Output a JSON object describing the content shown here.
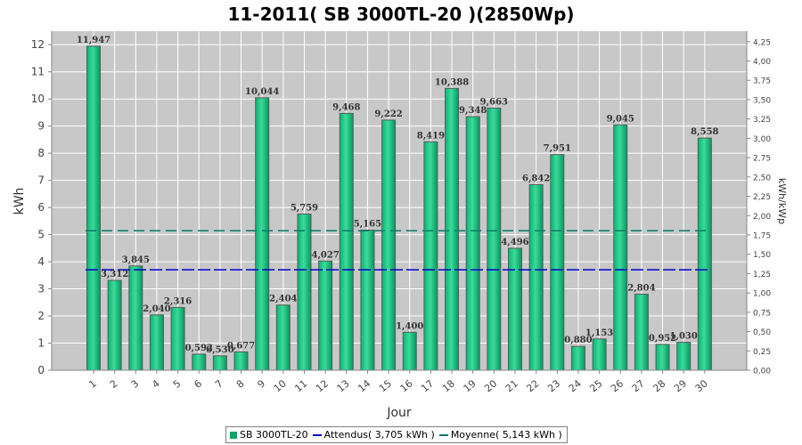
{
  "chart_data": {
    "type": "bar",
    "title": "11-2011( SB 3000TL-20 )(2850Wp)",
    "xlabel": "Jour",
    "ylabel": "kWh",
    "y2label": "kWh/kWp",
    "ylim": [
      0,
      12.5
    ],
    "y2lim": [
      0,
      4.386
    ],
    "yticks": [
      "0",
      "1",
      "2",
      "3",
      "4",
      "5",
      "6",
      "7",
      "8",
      "9",
      "10",
      "11",
      "12"
    ],
    "y2ticks": [
      "0,00",
      "0,25",
      "0,50",
      "0,75",
      "1,00",
      "1,25",
      "1,50",
      "1,75",
      "2,00",
      "2,25",
      "2,50",
      "2,75",
      "3,00",
      "3,25",
      "3,50",
      "3,75",
      "4,00",
      "4,25"
    ],
    "grid": true,
    "legend_position": "bottom",
    "categories": [
      "1",
      "2",
      "3",
      "4",
      "5",
      "6",
      "7",
      "8",
      "9",
      "10",
      "11",
      "12",
      "13",
      "14",
      "15",
      "16",
      "17",
      "18",
      "19",
      "20",
      "21",
      "22",
      "23",
      "24",
      "25",
      "26",
      "27",
      "28",
      "29",
      "30"
    ],
    "series": [
      {
        "name": "SB 3000TL-20",
        "values": [
          11.947,
          3.312,
          3.845,
          2.04,
          2.316,
          0.592,
          0.53,
          0.677,
          10.044,
          2.404,
          5.759,
          4.027,
          9.468,
          5.165,
          9.222,
          1.4,
          8.419,
          10.388,
          9.348,
          9.663,
          4.496,
          6.842,
          7.951,
          0.88,
          1.153,
          9.045,
          2.804,
          0.952,
          1.03,
          8.558
        ],
        "labels": [
          "11,947",
          "3,312",
          "3,845",
          "2,040",
          "2,316",
          "0,592",
          "0,530",
          "0,677",
          "10,044",
          "2,404",
          "5,759",
          "4,027",
          "9,468",
          "5,165",
          "9,222",
          "1,400",
          "8,419",
          "10,388",
          "9,348",
          "9,663",
          "4,496",
          "6,842",
          "7,951",
          "0,880",
          "1,153",
          "9,045",
          "2,804",
          "0,952",
          "1,030",
          "8,558"
        ],
        "color": "#00a86b"
      }
    ],
    "reference_lines": [
      {
        "name": "Attendus( 3,705 kWh )",
        "value": 3.705,
        "color": "#0000cc"
      },
      {
        "name": "Moyenne( 5,143 kWh )",
        "value": 5.143,
        "color": "#0a7a6a"
      }
    ],
    "legend": [
      "SB 3000TL-20",
      "Attendus( 3,705 kWh )",
      "Moyenne( 5,143 kWh )"
    ]
  },
  "colors": {
    "plot_background": "#c8c8c8",
    "gridline": "#ffffff",
    "bar_fill": "#00a86b",
    "bar_highlight": "#3fd99a",
    "bar_border": "#5a5a5a"
  }
}
